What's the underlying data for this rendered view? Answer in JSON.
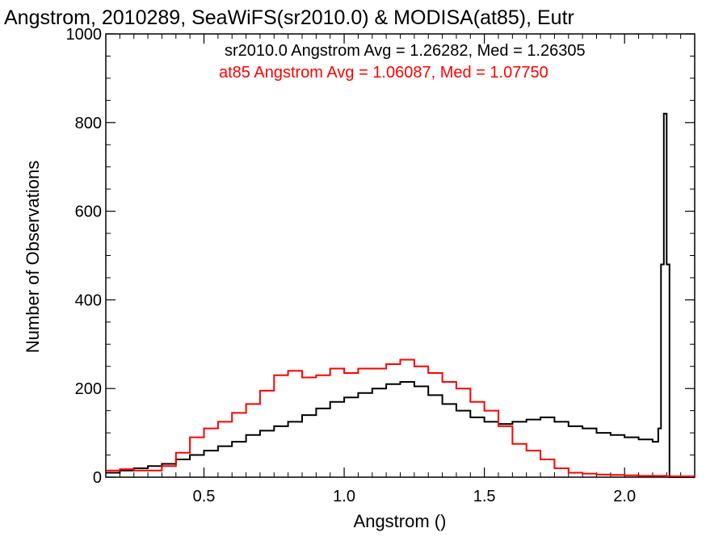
{
  "chart_data": {
    "type": "line",
    "title": "Angstrom, 2010289, SeaWiFS(sr2010.0) & MODISA(at85), Eutr",
    "xlabel": "Angstrom ()",
    "ylabel": "Number of Observations",
    "xlim": [
      0.15,
      2.25
    ],
    "ylim": [
      0,
      1000
    ],
    "x_ticks": [
      0.5,
      1.0,
      1.5,
      2.0
    ],
    "x_tick_labels": [
      "0.5",
      "1.0",
      "1.5",
      "2.0"
    ],
    "y_ticks": [
      0,
      200,
      400,
      600,
      800,
      1000
    ],
    "y_tick_labels": [
      "0",
      "200",
      "400",
      "600",
      "800",
      "1000"
    ],
    "grid": false,
    "legend_position": "top-right",
    "annotations": [
      {
        "text": "sr2010.0 Angstrom Avg = 1.26282, Med = 1.26305",
        "color": "#000000"
      },
      {
        "text": "at85 Angstrom Avg = 1.06087, Med = 1.07750",
        "color": "#ff0000"
      }
    ],
    "series": [
      {
        "color": "#000000",
        "step": true,
        "x": [
          0.15,
          0.2,
          0.25,
          0.3,
          0.35,
          0.4,
          0.45,
          0.5,
          0.55,
          0.6,
          0.65,
          0.7,
          0.75,
          0.8,
          0.85,
          0.9,
          0.95,
          1.0,
          1.05,
          1.1,
          1.15,
          1.2,
          1.25,
          1.3,
          1.35,
          1.4,
          1.45,
          1.5,
          1.55,
          1.6,
          1.65,
          1.7,
          1.75,
          1.8,
          1.85,
          1.9,
          1.95,
          2.0,
          2.05,
          2.1,
          2.12,
          2.13,
          2.14,
          2.15,
          2.16,
          2.25
        ],
        "y": [
          10,
          15,
          20,
          25,
          30,
          40,
          50,
          60,
          70,
          80,
          95,
          105,
          115,
          125,
          140,
          155,
          170,
          180,
          190,
          200,
          210,
          215,
          205,
          185,
          165,
          150,
          135,
          125,
          120,
          125,
          130,
          135,
          125,
          115,
          110,
          100,
          95,
          90,
          85,
          80,
          110,
          480,
          820,
          480,
          0,
          0
        ]
      },
      {
        "color": "#ff0000",
        "step": true,
        "x": [
          0.15,
          0.2,
          0.25,
          0.3,
          0.35,
          0.4,
          0.45,
          0.5,
          0.55,
          0.6,
          0.65,
          0.7,
          0.75,
          0.8,
          0.85,
          0.9,
          0.95,
          1.0,
          1.05,
          1.1,
          1.15,
          1.2,
          1.25,
          1.3,
          1.35,
          1.4,
          1.45,
          1.5,
          1.55,
          1.6,
          1.65,
          1.7,
          1.75,
          1.8,
          1.85,
          1.9,
          1.95,
          2.0,
          2.05,
          2.1,
          2.15,
          2.25
        ],
        "y": [
          15,
          18,
          15,
          15,
          25,
          55,
          90,
          110,
          125,
          145,
          165,
          195,
          230,
          240,
          225,
          230,
          245,
          235,
          245,
          245,
          255,
          265,
          250,
          235,
          215,
          200,
          170,
          150,
          115,
          75,
          60,
          40,
          20,
          10,
          8,
          6,
          5,
          4,
          3,
          3,
          2,
          2
        ]
      }
    ]
  }
}
